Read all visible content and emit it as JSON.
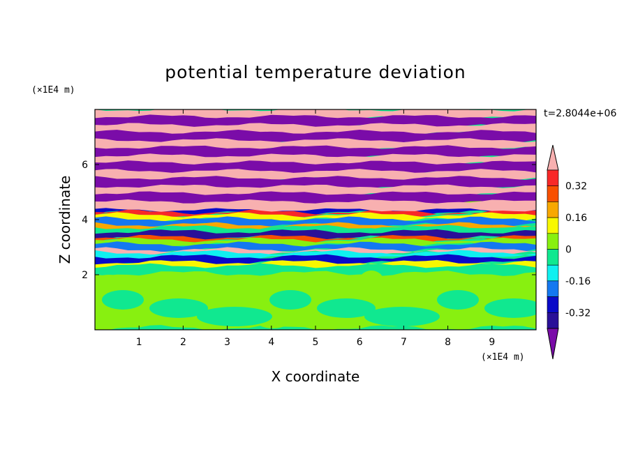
{
  "chart_data": {
    "type": "heatmap",
    "title": "potential temperature deviation",
    "xlabel": "X coordinate",
    "ylabel": "Z coordinate",
    "x_unit": "(×1E4 m)",
    "z_unit": "(×1E4 m)",
    "time_label": "t=2.8044e+06",
    "xlim": [
      0,
      10
    ],
    "ylim": [
      0,
      8
    ],
    "x_ticks": [
      "1",
      "2",
      "3",
      "4",
      "5",
      "6",
      "7",
      "8",
      "9"
    ],
    "y_ticks": [
      "2",
      "4",
      "6"
    ],
    "colorbar": {
      "levels": [
        -0.4,
        -0.32,
        -0.24,
        -0.16,
        -0.08,
        0,
        0.08,
        0.16,
        0.24,
        0.32,
        0.4
      ],
      "tick_labels": [
        "0.32",
        "0.16",
        "0",
        "-0.16",
        "-0.32"
      ],
      "colors": [
        "#7a0ca8",
        "#2a1098",
        "#0a0ac8",
        "#1478f0",
        "#10f0f0",
        "#10e890",
        "#88f010",
        "#f8f800",
        "#f8a800",
        "#f85000",
        "#f82828",
        "#f8b0b0"
      ]
    },
    "field_summary": {
      "upper_layer": "alternating bands of about +0.4 and -0.4 (pink / purple) above Z ≈ 5",
      "middle_layer": "mixed -0.4 to +0.4 filaments between Z ≈ 2 and Z ≈ 5",
      "lower_layer": "near zero (0 to 0.08) below Z ≈ 2"
    }
  }
}
